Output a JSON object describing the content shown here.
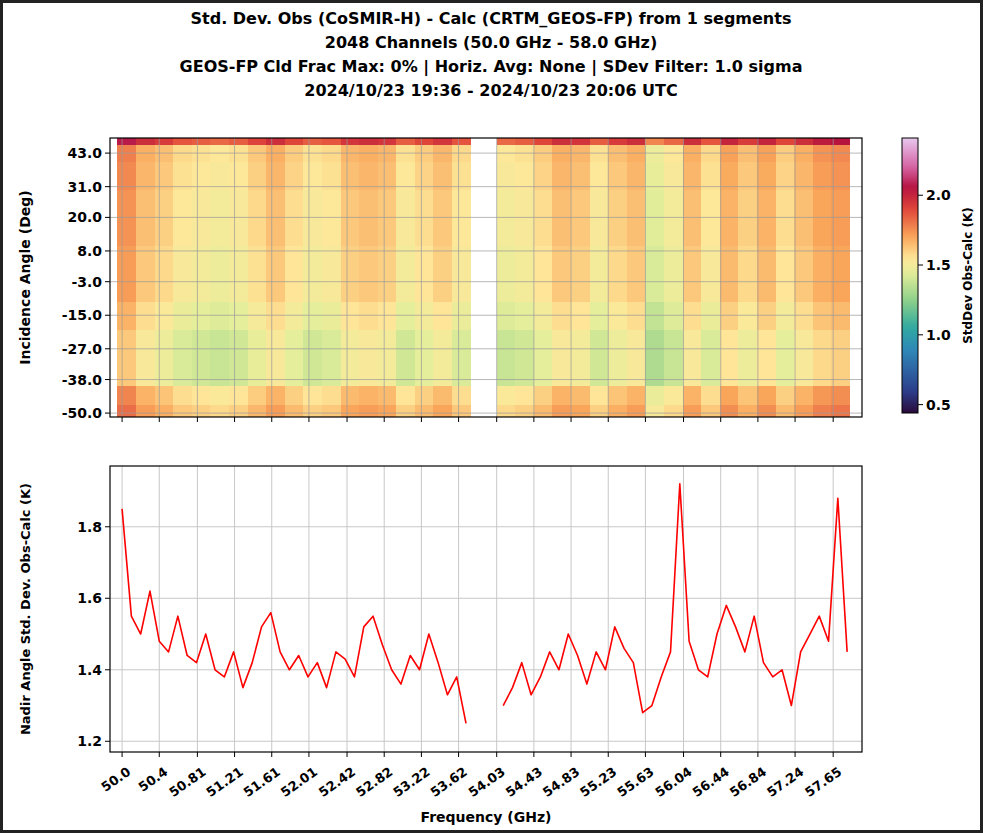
{
  "chart_data": [
    {
      "type": "heatmap",
      "title": [
        "Std. Dev. Obs (CoSMIR-H) - Calc (CRTM_GEOS-FP) from 1 segments",
        "2048 Channels (50.0 GHz - 58.0 GHz)",
        "GEOS-FP Cld Frac Max: 0% | Horiz. Avg: None | SDev Filter: 1.0 sigma",
        "2024/10/23 19:36 - 2024/10/23 20:06 UTC"
      ],
      "y_label": "Incidence Angle (Deg)",
      "x_edges": [
        49.95,
        50.15,
        50.35,
        50.55,
        50.75,
        50.95,
        51.15,
        51.35,
        51.55,
        51.75,
        51.95,
        52.15,
        52.35,
        52.55,
        52.75,
        52.95,
        53.15,
        53.35,
        53.55,
        53.75,
        54.03,
        54.23,
        54.43,
        54.63,
        54.83,
        55.03,
        55.23,
        55.43,
        55.63,
        55.83,
        56.03,
        56.23,
        56.43,
        56.63,
        56.83,
        57.03,
        57.23,
        57.43,
        57.63,
        57.83
      ],
      "y_edges": [
        -51.4,
        -47,
        -40,
        -30,
        -20,
        -10,
        0,
        10,
        20,
        30,
        40,
        46,
        48.4
      ],
      "cells": [
        [
          1.82,
          1.72,
          1.68,
          1.62,
          1.6,
          1.58,
          1.6,
          1.66,
          1.72,
          1.65,
          1.6,
          1.62,
          1.7,
          1.72,
          1.7,
          1.6,
          1.65,
          1.7,
          1.62,
          null,
          1.58,
          1.6,
          1.65,
          1.72,
          1.7,
          1.6,
          1.68,
          1.72,
          1.52,
          1.58,
          1.72,
          1.62,
          1.75,
          1.68,
          1.75,
          1.65,
          1.72,
          1.78,
          1.8
        ],
        [
          1.77,
          1.67,
          1.63,
          1.57,
          1.55,
          1.53,
          1.55,
          1.61,
          1.67,
          1.6,
          1.55,
          1.57,
          1.65,
          1.67,
          1.65,
          1.55,
          1.6,
          1.65,
          1.57,
          null,
          1.53,
          1.55,
          1.6,
          1.67,
          1.65,
          1.55,
          1.63,
          1.67,
          1.47,
          1.53,
          1.67,
          1.57,
          1.7,
          1.63,
          1.7,
          1.6,
          1.67,
          1.73,
          1.75
        ],
        [
          1.62,
          1.52,
          1.48,
          1.42,
          1.4,
          1.38,
          1.4,
          1.46,
          1.52,
          1.45,
          1.4,
          1.42,
          1.5,
          1.52,
          1.5,
          1.4,
          1.45,
          1.5,
          1.42,
          null,
          1.38,
          1.4,
          1.45,
          1.52,
          1.5,
          1.4,
          1.48,
          1.52,
          1.32,
          1.38,
          1.52,
          1.42,
          1.55,
          1.48,
          1.55,
          1.45,
          1.52,
          1.58,
          1.6
        ],
        [
          1.62,
          1.52,
          1.48,
          1.42,
          1.4,
          1.38,
          1.4,
          1.46,
          1.52,
          1.45,
          1.4,
          1.42,
          1.5,
          1.52,
          1.5,
          1.4,
          1.45,
          1.5,
          1.42,
          null,
          1.38,
          1.4,
          1.45,
          1.52,
          1.5,
          1.4,
          1.48,
          1.52,
          1.32,
          1.38,
          1.52,
          1.42,
          1.55,
          1.48,
          1.55,
          1.45,
          1.52,
          1.58,
          1.6
        ],
        [
          1.67,
          1.57,
          1.53,
          1.47,
          1.45,
          1.43,
          1.45,
          1.51,
          1.57,
          1.5,
          1.45,
          1.47,
          1.55,
          1.57,
          1.55,
          1.45,
          1.5,
          1.55,
          1.47,
          null,
          1.43,
          1.45,
          1.5,
          1.57,
          1.55,
          1.45,
          1.53,
          1.57,
          1.37,
          1.43,
          1.57,
          1.47,
          1.6,
          1.53,
          1.6,
          1.5,
          1.57,
          1.63,
          1.65
        ],
        [
          1.72,
          1.62,
          1.58,
          1.52,
          1.5,
          1.48,
          1.5,
          1.56,
          1.62,
          1.55,
          1.5,
          1.52,
          1.6,
          1.62,
          1.6,
          1.5,
          1.55,
          1.6,
          1.52,
          null,
          1.48,
          1.5,
          1.55,
          1.62,
          1.6,
          1.5,
          1.58,
          1.62,
          1.42,
          1.48,
          1.62,
          1.52,
          1.65,
          1.58,
          1.65,
          1.55,
          1.62,
          1.68,
          1.7
        ],
        [
          1.72,
          1.62,
          1.58,
          1.52,
          1.5,
          1.48,
          1.5,
          1.56,
          1.62,
          1.55,
          1.5,
          1.52,
          1.6,
          1.62,
          1.6,
          1.5,
          1.55,
          1.6,
          1.52,
          null,
          1.48,
          1.5,
          1.55,
          1.62,
          1.6,
          1.5,
          1.58,
          1.62,
          1.42,
          1.48,
          1.62,
          1.52,
          1.65,
          1.58,
          1.65,
          1.55,
          1.62,
          1.68,
          1.7
        ],
        [
          1.74,
          1.64,
          1.6,
          1.54,
          1.52,
          1.5,
          1.52,
          1.58,
          1.64,
          1.57,
          1.52,
          1.54,
          1.62,
          1.64,
          1.62,
          1.52,
          1.57,
          1.62,
          1.54,
          null,
          1.5,
          1.52,
          1.57,
          1.64,
          1.62,
          1.52,
          1.6,
          1.64,
          1.44,
          1.5,
          1.64,
          1.54,
          1.67,
          1.6,
          1.67,
          1.57,
          1.64,
          1.7,
          1.72
        ],
        [
          1.74,
          1.64,
          1.6,
          1.54,
          1.52,
          1.5,
          1.52,
          1.58,
          1.64,
          1.57,
          1.52,
          1.54,
          1.62,
          1.64,
          1.62,
          1.52,
          1.57,
          1.62,
          1.54,
          null,
          1.5,
          1.52,
          1.57,
          1.64,
          1.62,
          1.52,
          1.6,
          1.64,
          1.44,
          1.5,
          1.64,
          1.54,
          1.67,
          1.6,
          1.67,
          1.57,
          1.64,
          1.7,
          1.72
        ],
        [
          1.76,
          1.66,
          1.62,
          1.56,
          1.54,
          1.52,
          1.54,
          1.6,
          1.66,
          1.59,
          1.54,
          1.56,
          1.64,
          1.66,
          1.64,
          1.54,
          1.59,
          1.64,
          1.56,
          null,
          1.52,
          1.54,
          1.59,
          1.66,
          1.64,
          1.54,
          1.62,
          1.66,
          1.46,
          1.52,
          1.66,
          1.56,
          1.69,
          1.62,
          1.69,
          1.59,
          1.66,
          1.72,
          1.74
        ],
        [
          1.78,
          1.68,
          1.64,
          1.58,
          1.56,
          1.54,
          1.56,
          1.62,
          1.68,
          1.61,
          1.56,
          1.58,
          1.66,
          1.68,
          1.66,
          1.56,
          1.61,
          1.66,
          1.58,
          null,
          1.54,
          1.56,
          1.61,
          1.68,
          1.66,
          1.56,
          1.64,
          1.68,
          1.48,
          1.54,
          1.68,
          1.58,
          1.71,
          1.64,
          1.71,
          1.61,
          1.68,
          1.74,
          1.76
        ],
        [
          2.07,
          1.97,
          1.93,
          1.87,
          1.85,
          1.83,
          1.85,
          1.91,
          1.97,
          1.9,
          1.85,
          1.87,
          1.95,
          1.97,
          1.95,
          1.85,
          1.9,
          1.95,
          1.87,
          null,
          1.83,
          1.85,
          1.9,
          1.97,
          1.95,
          1.85,
          1.93,
          1.97,
          1.77,
          1.83,
          1.97,
          1.87,
          2.0,
          1.93,
          2.0,
          1.9,
          1.97,
          2.03,
          2.05
        ]
      ],
      "xlim": [
        49.87,
        57.96
      ],
      "ylim": [
        -51.4,
        48.4
      ],
      "xticks": [
        {
          "value": 50,
          "label": "50.0"
        },
        50.4,
        50.81,
        51.21,
        51.61,
        52.01,
        52.42,
        52.82,
        53.22,
        53.62,
        54.03,
        54.43,
        54.83,
        55.23,
        55.63,
        56.04,
        56.44,
        56.84,
        57.24,
        57.65
      ],
      "yticks": [
        {
          "value": -50,
          "label": "-50.0"
        },
        {
          "value": -38,
          "label": "-38.0"
        },
        {
          "value": -27,
          "label": "-27.0"
        },
        {
          "value": -15,
          "label": "-15.0"
        },
        {
          "value": -3,
          "label": "-3.0"
        },
        {
          "value": 8,
          "label": "8.0"
        },
        {
          "value": 20,
          "label": "20.0"
        },
        {
          "value": 31,
          "label": "31.0"
        },
        {
          "value": 43,
          "label": "43.0"
        }
      ],
      "colorbar_label": "StdDev Obs-Calc (K)",
      "colorbar_range": [
        0.44,
        2.41
      ],
      "colorbar_ticks": [
        0.5,
        {
          "value": 1,
          "label": "1.0"
        },
        1.5,
        {
          "value": 2,
          "label": "2.0"
        }
      ],
      "grid": true,
      "tick_labels": "y"
    },
    {
      "type": "line",
      "x_label": "Frequency (GHz)",
      "y_label": "Nadir Angle Std. Dev. Obs-Calc (K)",
      "x": [
        50.0,
        50.1,
        50.2,
        50.3,
        50.4,
        50.5,
        50.6,
        50.7,
        50.8,
        50.9,
        51.0,
        51.1,
        51.2,
        51.3,
        51.4,
        51.5,
        51.6,
        51.7,
        51.8,
        51.9,
        52.0,
        52.1,
        52.2,
        52.3,
        52.4,
        52.5,
        52.6,
        52.7,
        52.8,
        52.9,
        53.0,
        53.1,
        53.2,
        53.3,
        53.4,
        53.5,
        53.6,
        53.7,
        53.8,
        53.9,
        54.0,
        54.1,
        54.2,
        54.3,
        54.4,
        54.5,
        54.6,
        54.7,
        54.8,
        54.9,
        55.0,
        55.1,
        55.2,
        55.3,
        55.4,
        55.5,
        55.6,
        55.7,
        55.8,
        55.9,
        56.0,
        56.1,
        56.2,
        56.3,
        56.4,
        56.5,
        56.6,
        56.7,
        56.8,
        56.9,
        57.0,
        57.1,
        57.2,
        57.3,
        57.4,
        57.5,
        57.6,
        57.7,
        57.8
      ],
      "series": [
        {
          "color": "#ff0000",
          "values": [
            1.85,
            1.55,
            1.5,
            1.62,
            1.48,
            1.45,
            1.55,
            1.44,
            1.42,
            1.5,
            1.4,
            1.38,
            1.45,
            1.35,
            1.42,
            1.52,
            1.56,
            1.45,
            1.4,
            1.44,
            1.38,
            1.42,
            1.35,
            1.45,
            1.43,
            1.38,
            1.52,
            1.55,
            1.47,
            1.4,
            1.36,
            1.44,
            1.4,
            1.5,
            1.42,
            1.33,
            1.38,
            1.25,
            null,
            null,
            null,
            1.3,
            1.35,
            1.42,
            1.33,
            1.38,
            1.45,
            1.4,
            1.5,
            1.44,
            1.36,
            1.45,
            1.4,
            1.52,
            1.46,
            1.42,
            1.28,
            1.3,
            1.38,
            1.45,
            1.92,
            1.48,
            1.4,
            1.38,
            1.5,
            1.58,
            1.52,
            1.45,
            1.55,
            1.42,
            1.38,
            1.4,
            1.3,
            1.45,
            1.5,
            1.55,
            1.48,
            1.88,
            1.45
          ]
        }
      ],
      "xlim": [
        49.87,
        57.96
      ],
      "ylim": [
        1.17,
        1.97
      ],
      "xticks": [
        {
          "value": 50,
          "label": "50.0"
        },
        50.4,
        50.81,
        51.21,
        51.61,
        52.01,
        52.42,
        52.82,
        53.22,
        53.62,
        54.03,
        54.43,
        54.83,
        55.23,
        55.63,
        56.04,
        56.44,
        56.84,
        57.24,
        57.65
      ],
      "yticks": [
        1.2,
        1.4,
        1.6,
        1.8
      ],
      "grid": true
    }
  ]
}
